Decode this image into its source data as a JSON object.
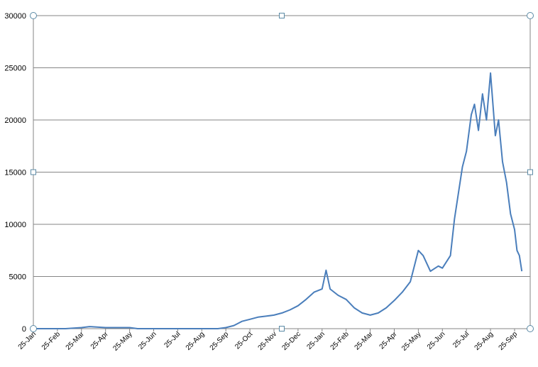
{
  "chart_data": {
    "type": "line",
    "title": "",
    "xlabel": "",
    "ylabel": "",
    "ylim": [
      0,
      30000
    ],
    "yticks": [
      0,
      5000,
      10000,
      15000,
      20000,
      25000,
      30000
    ],
    "grid": "horizontal",
    "legend": "none",
    "line_color": "#4a7ebb",
    "grid_color": "#868686",
    "x_tick_labels": [
      "25-Jan",
      "25-Feb",
      "25-Mar",
      "25-Apr",
      "25-May",
      "25-Jun",
      "25-Jul",
      "25-Aug",
      "25-Sep",
      "25-Oct",
      "25-Nov",
      "25-Dec",
      "25-Jan",
      "25-Feb",
      "25-Mar",
      "25-Apr",
      "25-May",
      "25-Jun",
      "25-Jul",
      "25-Aug",
      "25-Sep"
    ],
    "series": [
      {
        "x": [
          "25-Jan",
          "5-Mar",
          "25-Mar",
          "5-Apr",
          "25-Apr",
          "25-May",
          "5-Jun",
          "25-Jun",
          "25-Jul",
          "25-Aug",
          "15-Sep",
          "25-Sep",
          "5-Oct",
          "15-Oct",
          "25-Oct",
          "5-Nov",
          "15-Nov",
          "25-Nov",
          "5-Dec",
          "15-Dec",
          "25-Dec",
          "5-Jan",
          "15-Jan",
          "25-Jan",
          "30-Jan",
          "5-Feb",
          "15-Feb",
          "25-Feb",
          "5-Mar",
          "15-Mar",
          "25-Mar",
          "5-Apr",
          "15-Apr",
          "25-Apr",
          "5-May",
          "15-May",
          "20-May",
          "25-May",
          "1-Jun",
          "10-Jun",
          "20-Jun",
          "25-Jun",
          "5-Jul",
          "10-Jul",
          "15-Jul",
          "20-Jul",
          "25-Jul",
          "1-Aug",
          "5-Aug",
          "10-Aug",
          "15-Aug",
          "20-Aug",
          "25-Aug",
          "1-Sep",
          "5-Sep",
          "10-Sep",
          "15-Sep",
          "20-Sep",
          "25-Sep",
          "28-Sep",
          "1-Oct",
          "4-Oct"
        ],
        "values": [
          0,
          0,
          100,
          200,
          100,
          100,
          0,
          0,
          0,
          0,
          0,
          100,
          300,
          700,
          900,
          1100,
          1200,
          1300,
          1500,
          1800,
          2200,
          2800,
          3500,
          3800,
          5600,
          3800,
          3200,
          2800,
          2000,
          1500,
          1300,
          1500,
          2000,
          2700,
          3500,
          4500,
          6000,
          7500,
          7000,
          5500,
          6000,
          5800,
          7000,
          10500,
          13000,
          15500,
          17000,
          20500,
          21500,
          19000,
          22500,
          20000,
          24500,
          18500,
          20000,
          16000,
          14000,
          11000,
          9500,
          7500,
          7000,
          5500
        ]
      }
    ]
  }
}
